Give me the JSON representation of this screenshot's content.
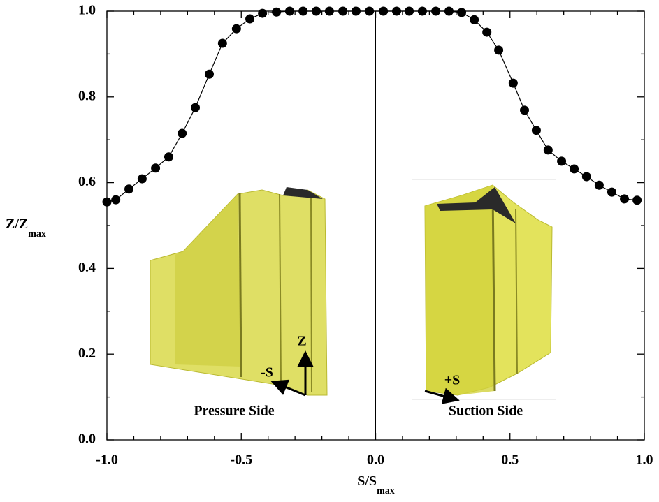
{
  "chart_data": {
    "type": "scatter",
    "xlabel": {
      "text": "S/S",
      "subscript": "max"
    },
    "ylabel": {
      "text": "Z/Z",
      "subscript": "max"
    },
    "xlim": [
      -1.0,
      1.0
    ],
    "ylim": [
      0.0,
      1.0
    ],
    "xticks": [
      {
        "value": -1.0,
        "label": "-1.0"
      },
      -0.5,
      {
        "value": 0.0,
        "label": "0.0"
      },
      0.5,
      {
        "value": 1.0,
        "label": "1.0"
      }
    ],
    "yticks": [
      {
        "value": 0.0,
        "label": "0.0"
      },
      0.2,
      0.4,
      0.6,
      0.8,
      {
        "value": 1.0,
        "label": "1.0"
      }
    ],
    "xminorticks": [
      -0.9,
      -0.8,
      -0.7,
      -0.6,
      -0.4,
      -0.3,
      -0.2,
      -0.1,
      0.1,
      0.2,
      0.3,
      0.4,
      0.6,
      0.7,
      0.8,
      0.9
    ],
    "yminorticks": [
      0.1,
      0.3,
      0.5,
      0.7,
      0.9
    ],
    "vline": 0.0,
    "line": true,
    "series": [
      {
        "color": "#000000",
        "x": [
          -1.0,
          -0.967,
          -0.918,
          -0.869,
          -0.819,
          -0.77,
          -0.72,
          -0.671,
          -0.619,
          -0.57,
          -0.518,
          -0.468,
          -0.421,
          -0.369,
          -0.32,
          -0.27,
          -0.221,
          -0.172,
          -0.122,
          -0.073,
          -0.023,
          0.029,
          0.078,
          0.125,
          0.174,
          0.224,
          0.273,
          0.32,
          0.367,
          0.414,
          0.458,
          0.512,
          0.554,
          0.598,
          0.642,
          0.692,
          0.739,
          0.785,
          0.832,
          0.879,
          0.926,
          0.973
        ],
        "values": [
          0.555,
          0.56,
          0.585,
          0.609,
          0.634,
          0.66,
          0.715,
          0.775,
          0.853,
          0.925,
          0.959,
          0.982,
          0.995,
          0.998,
          1.0,
          1.0,
          1.0,
          1.0,
          1.0,
          1.0,
          1.0,
          1.0,
          1.0,
          1.0,
          1.0,
          1.0,
          1.0,
          0.997,
          0.98,
          0.951,
          0.909,
          0.832,
          0.769,
          0.722,
          0.676,
          0.65,
          0.632,
          0.614,
          0.594,
          0.578,
          0.562,
          0.559
        ]
      }
    ],
    "annotations": [
      "Pressure Side",
      "Suction Side",
      "Z",
      "-S",
      "+S"
    ]
  }
}
